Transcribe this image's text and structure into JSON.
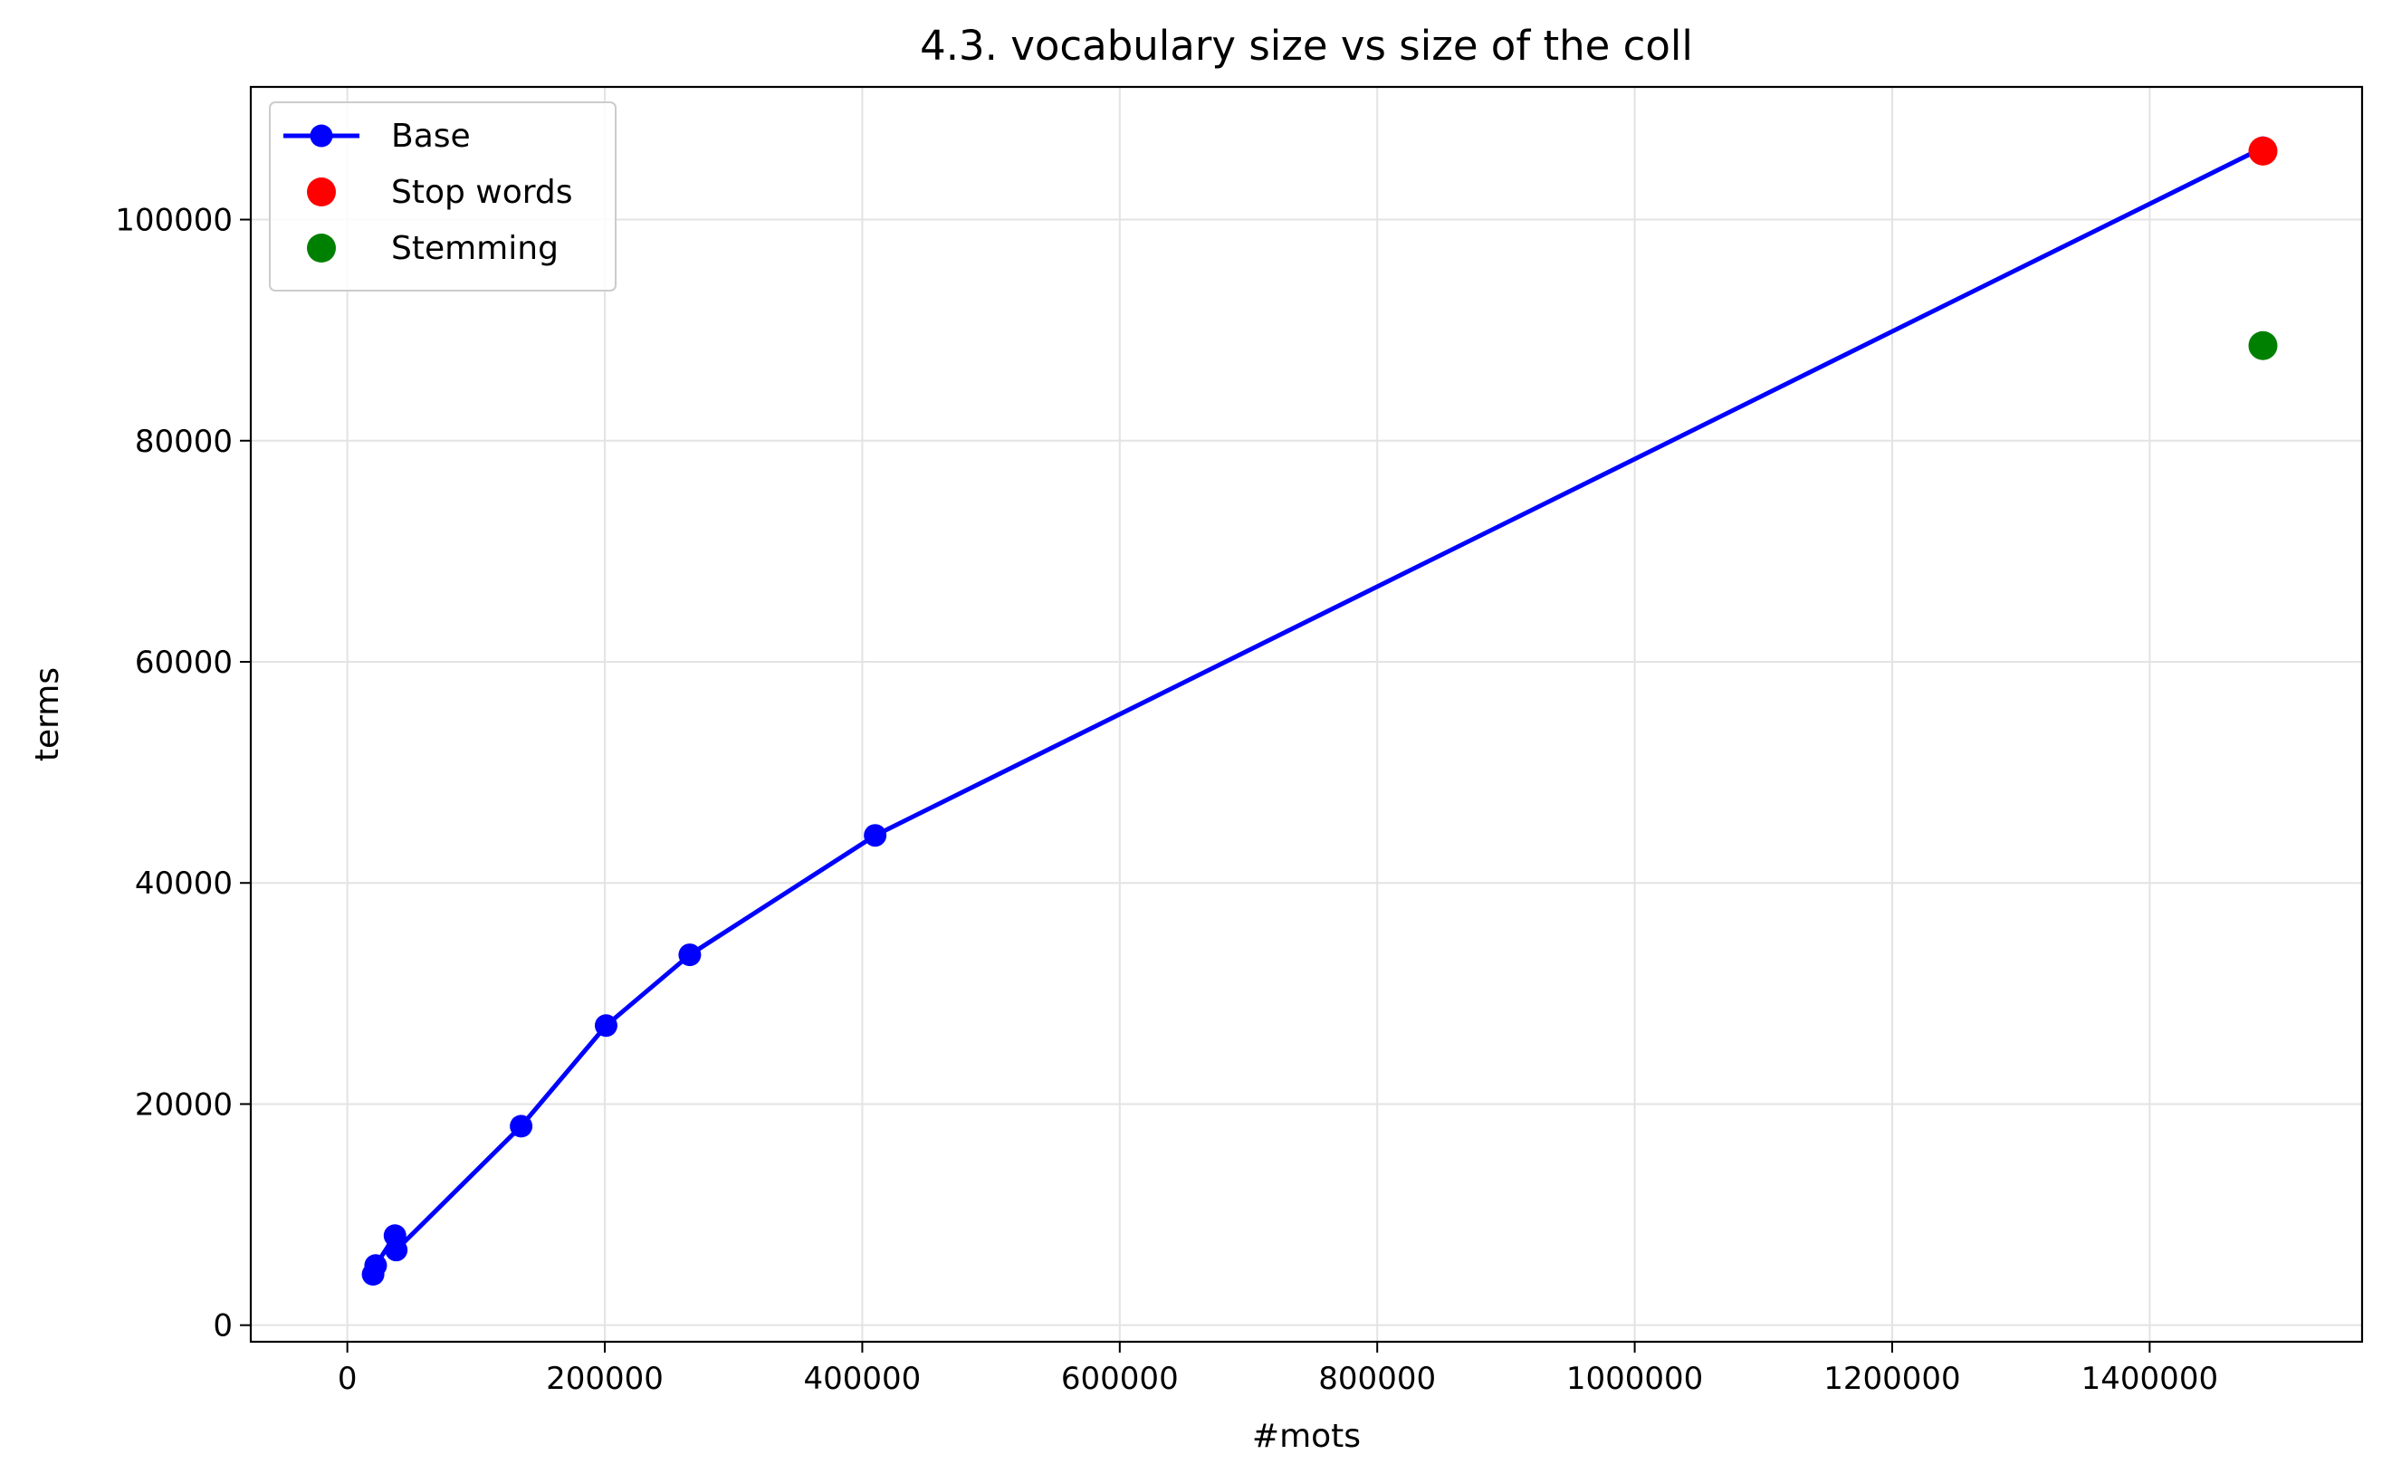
{
  "chart_data": {
    "type": "line",
    "title": "4.3. vocabulary size vs size of the coll",
    "xlabel": "#mots",
    "ylabel": "terms",
    "xlim": [
      -75000,
      1565000
    ],
    "ylim": [
      -1500,
      112000
    ],
    "xticks": [
      0,
      200000,
      400000,
      600000,
      800000,
      1000000,
      1200000,
      1400000
    ],
    "yticks": [
      0,
      20000,
      40000,
      60000,
      80000,
      100000
    ],
    "grid": true,
    "legend_position": "top-left",
    "series": [
      {
        "name": "Base",
        "kind": "line+marker",
        "color": "#0000ff",
        "points": [
          [
            20000,
            4600
          ],
          [
            22000,
            5400
          ],
          [
            37000,
            8100
          ],
          [
            38000,
            6800
          ],
          [
            135000,
            18000
          ],
          [
            201000,
            27100
          ],
          [
            266000,
            33500
          ],
          [
            410000,
            44300
          ],
          [
            1488000,
            106500
          ]
        ]
      },
      {
        "name": "Stop words",
        "kind": "marker",
        "color": "#ff0000",
        "points": [
          [
            1488000,
            106200
          ]
        ]
      },
      {
        "name": "Stemming",
        "kind": "marker",
        "color": "#008000",
        "points": [
          [
            1488000,
            88600
          ]
        ]
      }
    ]
  }
}
